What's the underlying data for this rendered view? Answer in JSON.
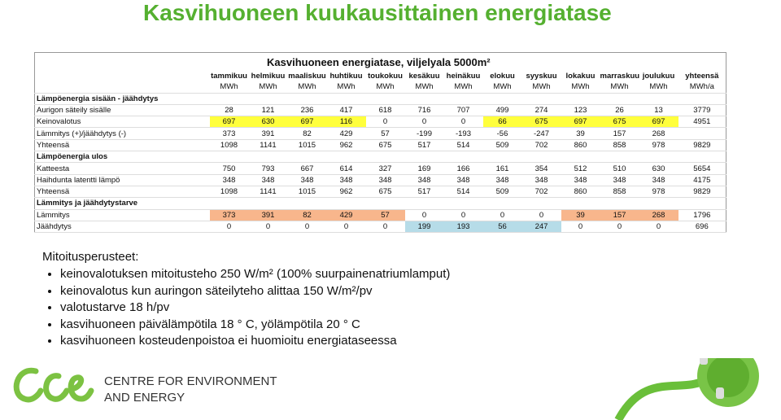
{
  "title": "Kasvihuoneen kuukausittainen energiatase",
  "table": {
    "caption": "Kasvihuoneen energiatase, viljelyala 5000m²",
    "columns": [
      "tammikuu",
      "helmikuu",
      "maaliskuu",
      "huhtikuu",
      "toukokuu",
      "kesäkuu",
      "heinäkuu",
      "elokuu",
      "syyskuu",
      "lokakuu",
      "marraskuu",
      "joulukuu",
      "yhteensä"
    ],
    "units": [
      "MWh",
      "MWh",
      "MWh",
      "MWh",
      "MWh",
      "MWh",
      "MWh",
      "MWh",
      "MWh",
      "MWh",
      "MWh",
      "MWh",
      "MWh/a"
    ],
    "sections": [
      {
        "title": "Lämpöenergia sisään - jäähdytys",
        "rows": [
          {
            "label": "Aurigon säteily sisälle",
            "values": [
              28,
              121,
              236,
              417,
              618,
              716,
              707,
              499,
              274,
              123,
              26,
              13
            ],
            "total": 3779
          },
          {
            "label": "Keinovalotus",
            "values": [
              697,
              630,
              697,
              116,
              0,
              0,
              0,
              66,
              675,
              697,
              675,
              697
            ],
            "total": 4951,
            "highlight": "#ffff3c"
          },
          {
            "label": "Lämmitys (+)/jäähdytys (-)",
            "values": [
              373,
              391,
              82,
              429,
              57,
              -199,
              -193,
              -56,
              -247,
              39,
              157,
              268
            ],
            "total": null
          },
          {
            "label": "Yhteensä",
            "values": [
              1098,
              1141,
              1015,
              962,
              675,
              517,
              514,
              509,
              702,
              860,
              858,
              978
            ],
            "total": 9829
          }
        ]
      },
      {
        "title": "Lämpöenergia ulos",
        "rows": [
          {
            "label": "Katteesta",
            "values": [
              750,
              793,
              667,
              614,
              327,
              169,
              166,
              161,
              354,
              512,
              510,
              630
            ],
            "total": 5654
          },
          {
            "label": "Haihdunta latentti lämpö",
            "values": [
              348,
              348,
              348,
              348,
              348,
              348,
              348,
              348,
              348,
              348,
              348,
              348
            ],
            "total": 4175
          },
          {
            "label": "Yhteensä",
            "values": [
              1098,
              1141,
              1015,
              962,
              675,
              517,
              514,
              509,
              702,
              860,
              858,
              978
            ],
            "total": 9829
          }
        ]
      },
      {
        "title": "Lämmitys ja jäähdytystarve",
        "rows": [
          {
            "label": "Lämmitys",
            "values": [
              373,
              391,
              82,
              429,
              57,
              0,
              0,
              0,
              0,
              39,
              157,
              268
            ],
            "total": 1796,
            "highlight": "#f8b68c"
          },
          {
            "label": "Jäähdytys",
            "values": [
              0,
              0,
              0,
              0,
              0,
              199,
              193,
              56,
              247,
              0,
              0,
              0
            ],
            "total": 696,
            "highlight": "#b6dce8"
          }
        ]
      }
    ]
  },
  "notes": {
    "heading": "Mitoitusperusteet:",
    "items": [
      "keinovalotuksen mitoitusteho 250 W/m² (100% suurpainenatriumlamput)",
      "keinovalotus kun auringon säteilyteho alittaa 150 W/m²/pv",
      "valotustarve 18 h/pv",
      "kasvihuoneen päivälämpötila 18 ° C, yölämpötila 20 ° C",
      "kasvihuoneen kosteudenpoistoa ei huomioitu energiataseessa"
    ]
  },
  "logo": {
    "line1": "CENTRE FOR ENVIRONMENT",
    "line2": "AND ENERGY"
  }
}
